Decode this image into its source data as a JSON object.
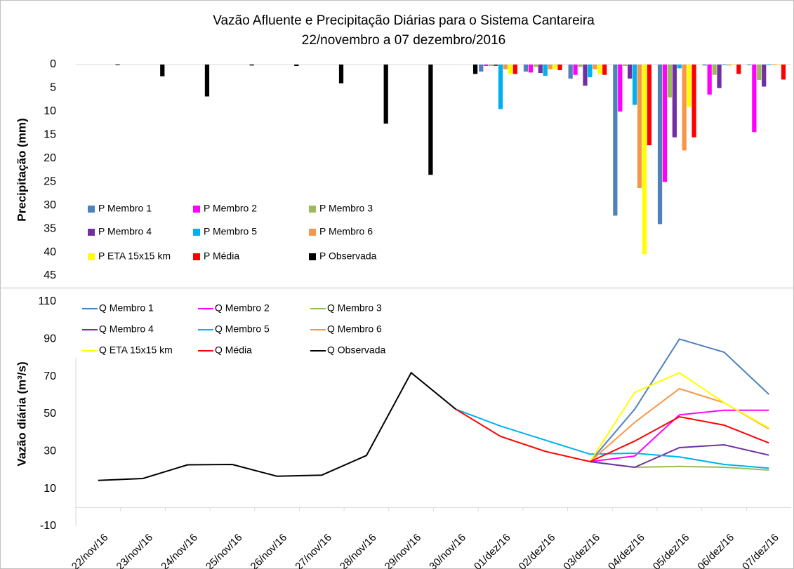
{
  "chart_data": [
    {
      "type": "bar",
      "title": "Vazão Afluente e Precipitação Diárias para o Sistema Cantareira",
      "subtitle": "22/novembro a 07 dezembro/2016",
      "y_label": "Precipitação (mm)",
      "ylim": [
        0,
        45
      ],
      "yticks": [
        0,
        5,
        10,
        15,
        20,
        25,
        30,
        35,
        40,
        45
      ],
      "y_inverted": true,
      "series": [
        {
          "name": "P Membro 1",
          "color": "#4f81bd",
          "values": [
            null,
            null,
            null,
            null,
            null,
            null,
            null,
            null,
            null,
            1.5,
            1.5,
            3,
            32.2,
            34,
            0.2,
            0
          ]
        },
        {
          "name": "P Membro 2",
          "color": "#ff00ff",
          "values": [
            null,
            null,
            null,
            null,
            null,
            null,
            null,
            null,
            null,
            0.3,
            1.7,
            2.2,
            10,
            25,
            6.4,
            14.4
          ]
        },
        {
          "name": "P Membro 3",
          "color": "#9bbb59",
          "values": [
            null,
            null,
            null,
            null,
            null,
            null,
            null,
            null,
            null,
            0.3,
            0.5,
            0.5,
            0.3,
            7,
            2.2,
            3.3
          ]
        },
        {
          "name": "P Membro 4",
          "color": "#7030a0",
          "values": [
            null,
            null,
            null,
            null,
            null,
            null,
            null,
            null,
            null,
            0.3,
            1.8,
            4.5,
            3,
            15.5,
            5,
            4.7
          ]
        },
        {
          "name": "P Membro 5",
          "color": "#00b0f0",
          "values": [
            null,
            null,
            null,
            null,
            null,
            null,
            null,
            null,
            null,
            9.5,
            2.4,
            2.7,
            8.6,
            0.8,
            0,
            0
          ]
        },
        {
          "name": "P Membro 6",
          "color": "#f79646",
          "values": [
            null,
            null,
            null,
            null,
            null,
            null,
            null,
            null,
            null,
            1,
            1,
            1,
            26.3,
            18.3,
            0.2,
            0
          ]
        },
        {
          "name": "P ETA 15x15 km",
          "color": "#ffff00",
          "values": [
            null,
            null,
            null,
            null,
            null,
            null,
            null,
            null,
            null,
            2,
            1,
            2,
            40.4,
            9,
            0,
            0
          ]
        },
        {
          "name": "P Média",
          "color": "#ff0000",
          "values": [
            null,
            null,
            null,
            null,
            null,
            null,
            null,
            null,
            null,
            2,
            1.2,
            2.2,
            17.2,
            15.5,
            2,
            3.2
          ]
        },
        {
          "name": "P Observada",
          "color": "#000000",
          "values": [
            0.1,
            2.5,
            6.8,
            0.2,
            0.3,
            4,
            12.6,
            23.5,
            2,
            null,
            null,
            null,
            null,
            null,
            null,
            null
          ]
        }
      ]
    },
    {
      "type": "line",
      "y_label": "Vazão diária (m³/s)",
      "categories": [
        "22/nov/16",
        "23/nov/16",
        "24/nov/16",
        "25/nov/16",
        "26/nov/16",
        "27/nov/16",
        "28/nov/16",
        "29/nov/16",
        "30/nov/16",
        "01/dez/16",
        "02/dez/16",
        "03/dez/16",
        "04/dez/16",
        "05/dez/16",
        "06/dez/16",
        "07/dez/16"
      ],
      "ylim": [
        -10,
        110
      ],
      "yticks": [
        -10,
        10,
        30,
        50,
        70,
        90,
        110
      ],
      "series": [
        {
          "name": "Q Membro 1",
          "color": "#4f81bd",
          "values": [
            null,
            null,
            null,
            null,
            null,
            null,
            null,
            null,
            null,
            null,
            null,
            24.5,
            52.5,
            90,
            83,
            60.5
          ]
        },
        {
          "name": "Q Membro 2",
          "color": "#ff00ff",
          "values": [
            null,
            null,
            null,
            null,
            null,
            null,
            null,
            null,
            null,
            null,
            null,
            24.5,
            27.5,
            49.5,
            52,
            52
          ]
        },
        {
          "name": "Q Membro 3",
          "color": "#9bbb59",
          "values": [
            null,
            null,
            null,
            null,
            null,
            null,
            null,
            null,
            null,
            null,
            null,
            24.5,
            21.5,
            22,
            21.5,
            20
          ]
        },
        {
          "name": "Q Membro 4",
          "color": "#7030a0",
          "values": [
            null,
            null,
            null,
            null,
            null,
            null,
            null,
            null,
            null,
            null,
            null,
            24.5,
            21.5,
            32,
            33.5,
            28
          ]
        },
        {
          "name": "Q Membro 5",
          "color": "#00b0f0",
          "values": [
            null,
            null,
            null,
            null,
            null,
            null,
            null,
            null,
            52.5,
            43.5,
            36,
            28.5,
            29,
            27,
            23,
            21
          ]
        },
        {
          "name": "Q Membro 6",
          "color": "#f79646",
          "values": [
            null,
            null,
            null,
            null,
            null,
            null,
            null,
            null,
            null,
            null,
            null,
            24.5,
            45.5,
            63.5,
            56,
            42
          ]
        },
        {
          "name": "Q ETA 15x15 km",
          "color": "#ffff00",
          "values": [
            null,
            null,
            null,
            null,
            null,
            null,
            null,
            null,
            null,
            null,
            null,
            24.5,
            61.5,
            72,
            56,
            42.5
          ]
        },
        {
          "name": "Q Média",
          "color": "#ff0000",
          "values": [
            null,
            null,
            null,
            null,
            null,
            null,
            null,
            null,
            52.5,
            38,
            30,
            24.5,
            35.5,
            48.5,
            44,
            34.5
          ]
        },
        {
          "name": "Q Observada",
          "color": "#000000",
          "values": [
            14.5,
            15.5,
            22.8,
            23,
            16.7,
            17.3,
            27.8,
            72,
            52.5,
            null,
            null,
            null,
            null,
            null,
            null,
            null
          ]
        }
      ]
    }
  ]
}
